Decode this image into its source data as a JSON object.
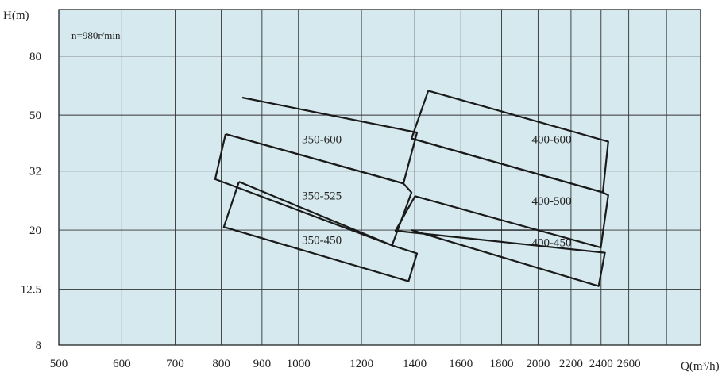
{
  "chart_data": {
    "type": "line",
    "title": "",
    "ylabel": "H(m)",
    "xlabel": "Q(m³/h)",
    "annotation": "n=980r/min",
    "x_ticks": [
      {
        "value": 500,
        "label": "500"
      },
      {
        "value": 600,
        "label": "600"
      },
      {
        "value": 700,
        "label": "700"
      },
      {
        "value": 800,
        "label": "800"
      },
      {
        "value": 900,
        "label": "900"
      },
      {
        "value": 1000,
        "label": "1000"
      },
      {
        "value": 1200,
        "label": "1200"
      },
      {
        "value": 1400,
        "label": "1400"
      },
      {
        "value": 1600,
        "label": "1600"
      },
      {
        "value": 1800,
        "label": "1800"
      },
      {
        "value": 2000,
        "label": "2000"
      },
      {
        "value": 2200,
        "label": "2200"
      },
      {
        "value": 2400,
        "label": "2400"
      },
      {
        "value": 2600,
        "label": "2600"
      }
    ],
    "y_ticks": [
      {
        "value": 8,
        "label": "8"
      },
      {
        "value": 12.5,
        "label": "12.5"
      },
      {
        "value": 20,
        "label": "20"
      },
      {
        "value": 32,
        "label": "32"
      },
      {
        "value": 50,
        "label": "50"
      },
      {
        "value": 80,
        "label": "80"
      }
    ],
    "x_scale": "log",
    "y_scale": "log",
    "xlim": [
      500,
      3200
    ],
    "ylim": [
      8,
      116
    ],
    "grid": true,
    "series": [
      {
        "name": "350-600",
        "points": [
          [
            850,
            57.5
          ],
          [
            1409,
            43.5
          ],
          [
            1355,
            29
          ],
          [
            810,
            43
          ]
        ]
      },
      {
        "name": "350-525",
        "points": [
          [
            810,
            43
          ],
          [
            1355,
            29
          ],
          [
            1387,
            27
          ],
          [
            1311,
            17.7
          ],
          [
            786,
            30
          ],
          [
            810,
            43
          ]
        ]
      },
      {
        "name": "350-450",
        "points": [
          [
            842,
            29.4
          ],
          [
            1311,
            17.7
          ],
          [
            1409,
            16.6
          ],
          [
            1375,
            13.3
          ],
          [
            806,
            20.5
          ],
          [
            842,
            29.4
          ]
        ]
      },
      {
        "name": "400-600",
        "points": [
          [
            1456,
            60.7
          ],
          [
            2450,
            40.5
          ],
          [
            2412,
            27
          ],
          [
            1387,
            41.5
          ],
          [
            1456,
            60.7
          ]
        ]
      },
      {
        "name": "400-500",
        "points": [
          [
            1387,
            41.5
          ],
          [
            2412,
            27
          ],
          [
            2450,
            26.4
          ],
          [
            2398,
            17.4
          ],
          [
            1401,
            26.2
          ]
        ]
      },
      {
        "name": "400-450",
        "points": [
          [
            1401,
            26.2
          ],
          [
            1324,
            19.9
          ],
          [
            2427,
            16.7
          ],
          [
            2383,
            12.8
          ],
          [
            1387,
            20
          ]
        ]
      }
    ],
    "extra_lines": [
      {
        "points": [
          [
            1387,
            20
          ],
          [
            2412,
            20
          ]
        ]
      }
    ]
  }
}
